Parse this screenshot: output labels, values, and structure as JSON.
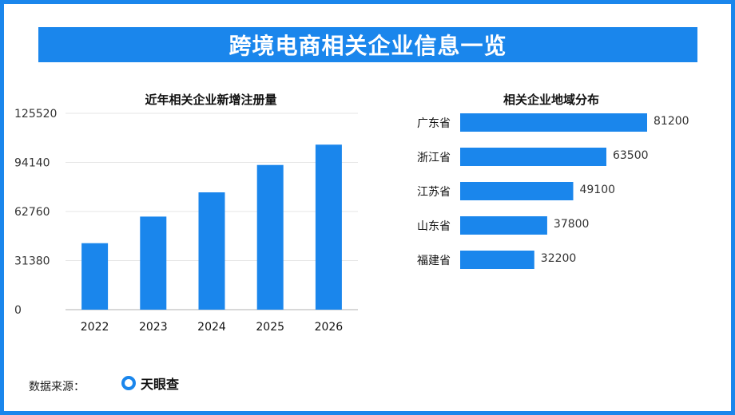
{
  "header": {
    "title": "跨境电商相关企业信息一览"
  },
  "footer": {
    "source_label": "数据来源：",
    "brand": "天眼查"
  },
  "colors": {
    "accent": "#1a86ec",
    "bar": "#1a86ec",
    "grid": "#e6e6e6",
    "axis": "#cccccc"
  },
  "chart_data": [
    {
      "type": "bar",
      "title": "近年相关企业新增注册量",
      "categories": [
        "2022",
        "2023",
        "2024",
        "2025",
        "2026"
      ],
      "values": [
        42500,
        59500,
        75000,
        92500,
        105500
      ],
      "ylim": [
        0,
        125520
      ],
      "yticks": [
        0,
        31380,
        62760,
        94140,
        125520
      ],
      "grid": true
    },
    {
      "type": "bar",
      "orientation": "horizontal",
      "title": "相关企业地域分布",
      "categories": [
        "广东省",
        "浙江省",
        "江苏省",
        "山东省",
        "福建省"
      ],
      "values": [
        81200,
        63500,
        49100,
        37800,
        32200
      ],
      "data_labels": true
    }
  ]
}
